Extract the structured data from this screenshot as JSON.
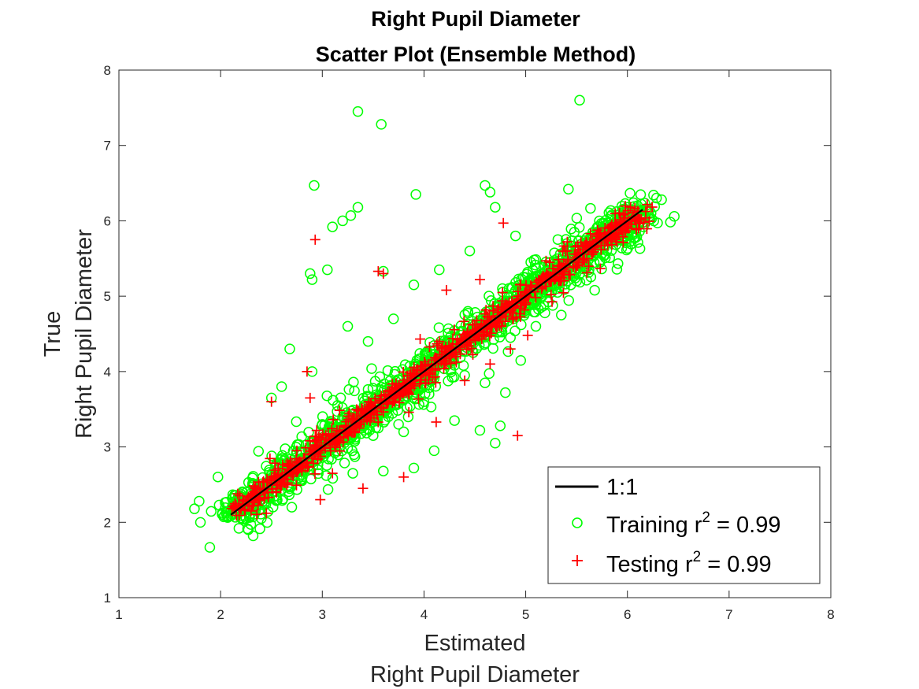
{
  "chart_data": {
    "type": "scatter",
    "title": [
      "Right Pupil Diameter",
      "Scatter Plot (Ensemble Method)"
    ],
    "xlabel": [
      "Estimated",
      "Right Pupil Diameter"
    ],
    "ylabel": [
      "True",
      "Right Pupil Diameter"
    ],
    "xlim": [
      1,
      8
    ],
    "ylim": [
      1,
      8
    ],
    "xticks": [
      "1",
      "2",
      "3",
      "4",
      "5",
      "6",
      "7",
      "8"
    ],
    "yticks": [
      "1",
      "2",
      "3",
      "4",
      "5",
      "6",
      "7",
      "8"
    ],
    "grid": false,
    "legend_position": "bottom-right",
    "legend": [
      {
        "label_prefix": "1:1",
        "label_sup": "",
        "label_suffix": "",
        "marker": "line",
        "color": "#000000"
      },
      {
        "label_prefix": "Training r",
        "label_sup": "2",
        "label_suffix": " = 0.99",
        "marker": "circle",
        "color": "#00ff00"
      },
      {
        "label_prefix": "Testing r",
        "label_sup": "2",
        "label_suffix": " = 0.99",
        "marker": "plus",
        "color": "#ff0000"
      }
    ],
    "series": [
      {
        "kind": "line",
        "color": "#000000",
        "x": [
          2.1,
          6.15
        ],
        "y": [
          2.1,
          6.15
        ]
      },
      {
        "kind": "circle",
        "color": "#00ff00",
        "x": [
          3.35,
          5.53,
          3.58,
          2.92,
          3.92,
          4.6,
          4.65,
          5.42,
          3.2,
          3.28,
          3.35,
          4.7,
          4.9,
          3.1,
          2.88,
          2.9,
          3.05,
          3.6,
          3.25,
          4.15,
          3.9,
          4.45,
          4.92,
          4.6,
          3.7,
          2.5,
          2.6,
          2.68,
          2.9,
          4.75,
          4.7,
          3.8,
          3.2,
          3.45,
          4.25,
          5.35,
          5.4,
          5.2,
          4.55,
          2.32,
          2.18,
          2.4,
          3.6,
          3.9,
          4.1,
          4.3,
          5.1,
          5.6,
          6.0,
          6.1,
          6.12,
          2.95,
          3.0,
          3.3,
          3.55,
          4.05,
          4.4,
          4.85,
          5.05,
          5.3,
          5.75,
          5.85,
          5.95,
          4.8,
          4.2,
          3.75,
          2.7,
          2.55,
          3.15,
          3.5,
          4.5,
          5.15,
          5.5,
          2.25,
          2.35,
          2.8,
          3.65,
          4.0
        ],
        "y": [
          7.45,
          7.6,
          7.28,
          6.47,
          6.35,
          6.47,
          6.38,
          6.42,
          6.0,
          6.07,
          6.18,
          6.18,
          5.8,
          5.92,
          5.3,
          5.22,
          5.35,
          5.33,
          4.6,
          5.35,
          5.15,
          5.6,
          5.05,
          3.85,
          4.7,
          3.65,
          3.8,
          4.3,
          4.0,
          3.28,
          3.05,
          3.2,
          3.4,
          4.4,
          4.25,
          4.75,
          5.62,
          5.05,
          3.22,
          1.82,
          1.92,
          2.05,
          2.68,
          2.72,
          2.95,
          3.35,
          4.6,
          5.38,
          6.18,
          6.2,
          6.12,
          2.9,
          3.3,
          2.65,
          3.25,
          3.7,
          3.95,
          4.45,
          5.45,
          5.1,
          5.7,
          5.75,
          6.0,
          3.72,
          4.3,
          3.3,
          2.2,
          2.35,
          3.55,
          3.15,
          4.45,
          4.85,
          5.2,
          2.05,
          2.2,
          2.55,
          3.4,
          3.6
        ]
      },
      {
        "kind": "plus",
        "color": "#ff0000",
        "x": [
          2.93,
          2.85,
          2.88,
          3.55,
          3.6,
          4.78,
          4.92,
          4.12,
          4.22,
          3.8,
          2.5,
          2.55,
          2.98,
          4.15,
          4.4,
          5.02,
          5.25,
          4.55,
          4.65,
          3.4,
          3.1,
          2.75,
          2.45,
          4.85,
          5.6,
          2.3,
          2.38
        ],
        "y": [
          5.75,
          4.0,
          3.65,
          5.33,
          5.3,
          5.97,
          3.15,
          3.33,
          5.08,
          2.6,
          3.6,
          2.45,
          2.3,
          4.4,
          3.88,
          4.48,
          5.02,
          5.22,
          4.1,
          2.45,
          2.65,
          2.95,
          2.12,
          4.3,
          5.5,
          2.15,
          2.3
        ]
      }
    ]
  }
}
